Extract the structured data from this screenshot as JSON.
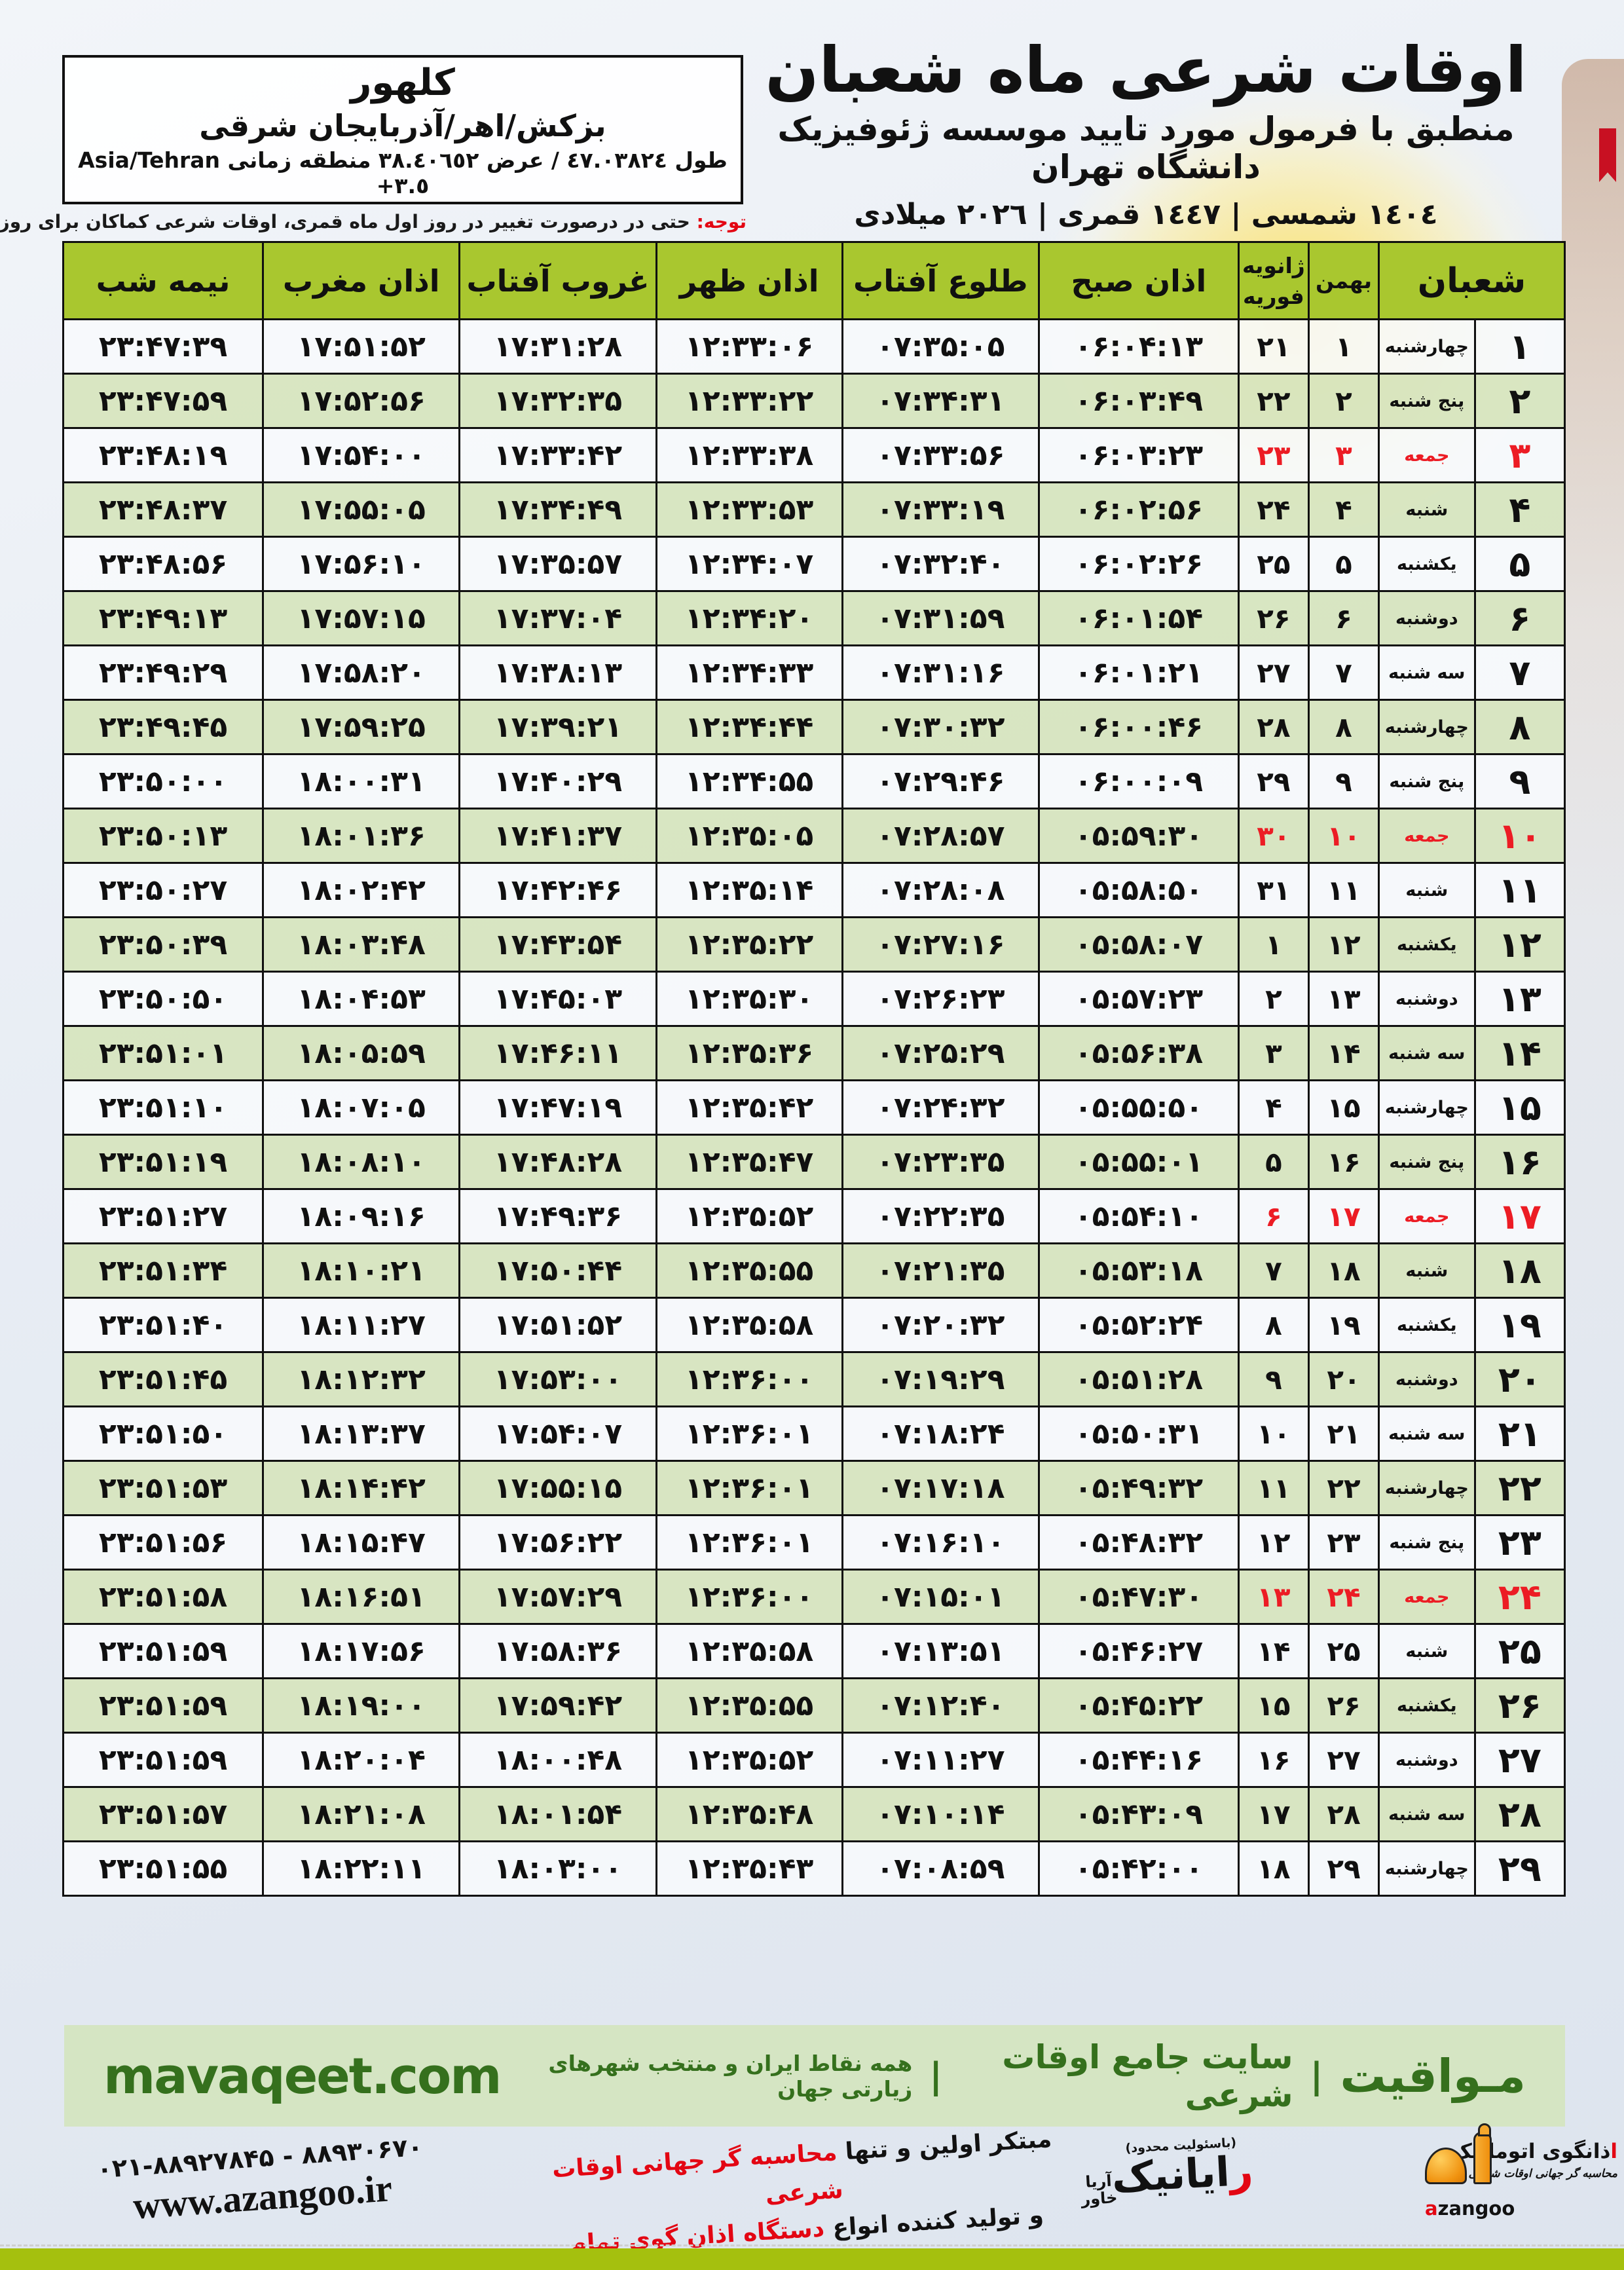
{
  "header": {
    "title": "اوقات شرعی ماه شعبان",
    "subtitle": "منطبق با فرمول مورد تایید موسسه ژئوفیزیک دانشگاه تهران",
    "years": "١٤٠٤ شمسی | ١٤٤٧ قمری | ٢٠٢٦ میلادی"
  },
  "location": {
    "name": "کلهور",
    "region": "بزکش/اهر/آذربایجان شرقی",
    "coords_fa": "طول ٤٧.٠٣٨٢٤ / عرض ٣٨.٤٠٦٥٢ منطقه زمانی",
    "timezone": "Asia/Tehran +٣.٥"
  },
  "notice": {
    "label": "توجه:",
    "text": " حتی در درصورت تغییر در روز اول ماه قمری، اوقات شرعی کماکان برای روزهای شمسی و میلادی معتبر است."
  },
  "colors": {
    "header_green": "#a9c72f",
    "row_green": "#d7e5bf",
    "friday_red": "#ec1c24",
    "mavaqeet_band": "#d5e5c3",
    "mavaqeet_text": "#35701d",
    "bottom_band": "#a5c00e"
  },
  "table": {
    "headers": {
      "shaban": "شعبان",
      "bahman": "بهمن",
      "jan": "ژانویه",
      "feb": "فوریه",
      "sobh": "اذان صبح",
      "tolu": "طلوع آفتاب",
      "zohr": "اذان ظهر",
      "ghorub": "غروب آفتاب",
      "maghreb": "اذان مغرب",
      "nimeshab": "نیمه شب"
    },
    "rows": [
      {
        "day": "۱",
        "weekday": "چهارشنبه",
        "bahman": "۱",
        "greg": "۲۱",
        "sobh": "۰۶:۰۴:۱۳",
        "tolu": "۰۷:۳۵:۰۵",
        "zohr": "۱۲:۳۳:۰۶",
        "ghorub": "۱۷:۳۱:۲۸",
        "maghreb": "۱۷:۵۱:۵۲",
        "nimeshab": "۲۳:۴۷:۳۹",
        "friday": false
      },
      {
        "day": "۲",
        "weekday": "پنج شنبه",
        "bahman": "۲",
        "greg": "۲۲",
        "sobh": "۰۶:۰۳:۴۹",
        "tolu": "۰۷:۳۴:۳۱",
        "zohr": "۱۲:۳۳:۲۲",
        "ghorub": "۱۷:۳۲:۳۵",
        "maghreb": "۱۷:۵۲:۵۶",
        "nimeshab": "۲۳:۴۷:۵۹",
        "friday": false
      },
      {
        "day": "۳",
        "weekday": "جمعه",
        "bahman": "۳",
        "greg": "۲۳",
        "sobh": "۰۶:۰۳:۲۳",
        "tolu": "۰۷:۳۳:۵۶",
        "zohr": "۱۲:۳۳:۳۸",
        "ghorub": "۱۷:۳۳:۴۲",
        "maghreb": "۱۷:۵۴:۰۰",
        "nimeshab": "۲۳:۴۸:۱۹",
        "friday": true
      },
      {
        "day": "۴",
        "weekday": "شنبه",
        "bahman": "۴",
        "greg": "۲۴",
        "sobh": "۰۶:۰۲:۵۶",
        "tolu": "۰۷:۳۳:۱۹",
        "zohr": "۱۲:۳۳:۵۳",
        "ghorub": "۱۷:۳۴:۴۹",
        "maghreb": "۱۷:۵۵:۰۵",
        "nimeshab": "۲۳:۴۸:۳۷",
        "friday": false
      },
      {
        "day": "۵",
        "weekday": "یکشنبه",
        "bahman": "۵",
        "greg": "۲۵",
        "sobh": "۰۶:۰۲:۲۶",
        "tolu": "۰۷:۳۲:۴۰",
        "zohr": "۱۲:۳۴:۰۷",
        "ghorub": "۱۷:۳۵:۵۷",
        "maghreb": "۱۷:۵۶:۱۰",
        "nimeshab": "۲۳:۴۸:۵۶",
        "friday": false
      },
      {
        "day": "۶",
        "weekday": "دوشنبه",
        "bahman": "۶",
        "greg": "۲۶",
        "sobh": "۰۶:۰۱:۵۴",
        "tolu": "۰۷:۳۱:۵۹",
        "zohr": "۱۲:۳۴:۲۰",
        "ghorub": "۱۷:۳۷:۰۴",
        "maghreb": "۱۷:۵۷:۱۵",
        "nimeshab": "۲۳:۴۹:۱۳",
        "friday": false
      },
      {
        "day": "۷",
        "weekday": "سه شنبه",
        "bahman": "۷",
        "greg": "۲۷",
        "sobh": "۰۶:۰۱:۲۱",
        "tolu": "۰۷:۳۱:۱۶",
        "zohr": "۱۲:۳۴:۳۳",
        "ghorub": "۱۷:۳۸:۱۳",
        "maghreb": "۱۷:۵۸:۲۰",
        "nimeshab": "۲۳:۴۹:۲۹",
        "friday": false
      },
      {
        "day": "۸",
        "weekday": "چهارشنبه",
        "bahman": "۸",
        "greg": "۲۸",
        "sobh": "۰۶:۰۰:۴۶",
        "tolu": "۰۷:۳۰:۳۲",
        "zohr": "۱۲:۳۴:۴۴",
        "ghorub": "۱۷:۳۹:۲۱",
        "maghreb": "۱۷:۵۹:۲۵",
        "nimeshab": "۲۳:۴۹:۴۵",
        "friday": false
      },
      {
        "day": "۹",
        "weekday": "پنج شنبه",
        "bahman": "۹",
        "greg": "۲۹",
        "sobh": "۰۶:۰۰:۰۹",
        "tolu": "۰۷:۲۹:۴۶",
        "zohr": "۱۲:۳۴:۵۵",
        "ghorub": "۱۷:۴۰:۲۹",
        "maghreb": "۱۸:۰۰:۳۱",
        "nimeshab": "۲۳:۵۰:۰۰",
        "friday": false
      },
      {
        "day": "۱۰",
        "weekday": "جمعه",
        "bahman": "۱۰",
        "greg": "۳۰",
        "sobh": "۰۵:۵۹:۳۰",
        "tolu": "۰۷:۲۸:۵۷",
        "zohr": "۱۲:۳۵:۰۵",
        "ghorub": "۱۷:۴۱:۳۷",
        "maghreb": "۱۸:۰۱:۳۶",
        "nimeshab": "۲۳:۵۰:۱۳",
        "friday": true
      },
      {
        "day": "۱۱",
        "weekday": "شنبه",
        "bahman": "۱۱",
        "greg": "۳۱",
        "sobh": "۰۵:۵۸:۵۰",
        "tolu": "۰۷:۲۸:۰۸",
        "zohr": "۱۲:۳۵:۱۴",
        "ghorub": "۱۷:۴۲:۴۶",
        "maghreb": "۱۸:۰۲:۴۲",
        "nimeshab": "۲۳:۵۰:۲۷",
        "friday": false
      },
      {
        "day": "۱۲",
        "weekday": "یکشنبه",
        "bahman": "۱۲",
        "greg": "۱",
        "sobh": "۰۵:۵۸:۰۷",
        "tolu": "۰۷:۲۷:۱۶",
        "zohr": "۱۲:۳۵:۲۲",
        "ghorub": "۱۷:۴۳:۵۴",
        "maghreb": "۱۸:۰۳:۴۸",
        "nimeshab": "۲۳:۵۰:۳۹",
        "friday": false
      },
      {
        "day": "۱۳",
        "weekday": "دوشنبه",
        "bahman": "۱۳",
        "greg": "۲",
        "sobh": "۰۵:۵۷:۲۳",
        "tolu": "۰۷:۲۶:۲۳",
        "zohr": "۱۲:۳۵:۳۰",
        "ghorub": "۱۷:۴۵:۰۳",
        "maghreb": "۱۸:۰۴:۵۳",
        "nimeshab": "۲۳:۵۰:۵۰",
        "friday": false
      },
      {
        "day": "۱۴",
        "weekday": "سه شنبه",
        "bahman": "۱۴",
        "greg": "۳",
        "sobh": "۰۵:۵۶:۳۸",
        "tolu": "۰۷:۲۵:۲۹",
        "zohr": "۱۲:۳۵:۳۶",
        "ghorub": "۱۷:۴۶:۱۱",
        "maghreb": "۱۸:۰۵:۵۹",
        "nimeshab": "۲۳:۵۱:۰۱",
        "friday": false
      },
      {
        "day": "۱۵",
        "weekday": "چهارشنبه",
        "bahman": "۱۵",
        "greg": "۴",
        "sobh": "۰۵:۵۵:۵۰",
        "tolu": "۰۷:۲۴:۳۲",
        "zohr": "۱۲:۳۵:۴۲",
        "ghorub": "۱۷:۴۷:۱۹",
        "maghreb": "۱۸:۰۷:۰۵",
        "nimeshab": "۲۳:۵۱:۱۰",
        "friday": false
      },
      {
        "day": "۱۶",
        "weekday": "پنج شنبه",
        "bahman": "۱۶",
        "greg": "۵",
        "sobh": "۰۵:۵۵:۰۱",
        "tolu": "۰۷:۲۳:۳۵",
        "zohr": "۱۲:۳۵:۴۷",
        "ghorub": "۱۷:۴۸:۲۸",
        "maghreb": "۱۸:۰۸:۱۰",
        "nimeshab": "۲۳:۵۱:۱۹",
        "friday": false
      },
      {
        "day": "۱۷",
        "weekday": "جمعه",
        "bahman": "۱۷",
        "greg": "۶",
        "sobh": "۰۵:۵۴:۱۰",
        "tolu": "۰۷:۲۲:۳۵",
        "zohr": "۱۲:۳۵:۵۲",
        "ghorub": "۱۷:۴۹:۳۶",
        "maghreb": "۱۸:۰۹:۱۶",
        "nimeshab": "۲۳:۵۱:۲۷",
        "friday": true
      },
      {
        "day": "۱۸",
        "weekday": "شنبه",
        "bahman": "۱۸",
        "greg": "۷",
        "sobh": "۰۵:۵۳:۱۸",
        "tolu": "۰۷:۲۱:۳۵",
        "zohr": "۱۲:۳۵:۵۵",
        "ghorub": "۱۷:۵۰:۴۴",
        "maghreb": "۱۸:۱۰:۲۱",
        "nimeshab": "۲۳:۵۱:۳۴",
        "friday": false
      },
      {
        "day": "۱۹",
        "weekday": "یکشنبه",
        "bahman": "۱۹",
        "greg": "۸",
        "sobh": "۰۵:۵۲:۲۴",
        "tolu": "۰۷:۲۰:۳۲",
        "zohr": "۱۲:۳۵:۵۸",
        "ghorub": "۱۷:۵۱:۵۲",
        "maghreb": "۱۸:۱۱:۲۷",
        "nimeshab": "۲۳:۵۱:۴۰",
        "friday": false
      },
      {
        "day": "۲۰",
        "weekday": "دوشنبه",
        "bahman": "۲۰",
        "greg": "۹",
        "sobh": "۰۵:۵۱:۲۸",
        "tolu": "۰۷:۱۹:۲۹",
        "zohr": "۱۲:۳۶:۰۰",
        "ghorub": "۱۷:۵۳:۰۰",
        "maghreb": "۱۸:۱۲:۳۲",
        "nimeshab": "۲۳:۵۱:۴۵",
        "friday": false
      },
      {
        "day": "۲۱",
        "weekday": "سه شنبه",
        "bahman": "۲۱",
        "greg": "۱۰",
        "sobh": "۰۵:۵۰:۳۱",
        "tolu": "۰۷:۱۸:۲۴",
        "zohr": "۱۲:۳۶:۰۱",
        "ghorub": "۱۷:۵۴:۰۷",
        "maghreb": "۱۸:۱۳:۳۷",
        "nimeshab": "۲۳:۵۱:۵۰",
        "friday": false
      },
      {
        "day": "۲۲",
        "weekday": "چهارشنبه",
        "bahman": "۲۲",
        "greg": "۱۱",
        "sobh": "۰۵:۴۹:۳۲",
        "tolu": "۰۷:۱۷:۱۸",
        "zohr": "۱۲:۳۶:۰۱",
        "ghorub": "۱۷:۵۵:۱۵",
        "maghreb": "۱۸:۱۴:۴۲",
        "nimeshab": "۲۳:۵۱:۵۳",
        "friday": false
      },
      {
        "day": "۲۳",
        "weekday": "پنج شنبه",
        "bahman": "۲۳",
        "greg": "۱۲",
        "sobh": "۰۵:۴۸:۳۲",
        "tolu": "۰۷:۱۶:۱۰",
        "zohr": "۱۲:۳۶:۰۱",
        "ghorub": "۱۷:۵۶:۲۲",
        "maghreb": "۱۸:۱۵:۴۷",
        "nimeshab": "۲۳:۵۱:۵۶",
        "friday": false
      },
      {
        "day": "۲۴",
        "weekday": "جمعه",
        "bahman": "۲۴",
        "greg": "۱۳",
        "sobh": "۰۵:۴۷:۳۰",
        "tolu": "۰۷:۱۵:۰۱",
        "zohr": "۱۲:۳۶:۰۰",
        "ghorub": "۱۷:۵۷:۲۹",
        "maghreb": "۱۸:۱۶:۵۱",
        "nimeshab": "۲۳:۵۱:۵۸",
        "friday": true
      },
      {
        "day": "۲۵",
        "weekday": "شنبه",
        "bahman": "۲۵",
        "greg": "۱۴",
        "sobh": "۰۵:۴۶:۲۷",
        "tolu": "۰۷:۱۳:۵۱",
        "zohr": "۱۲:۳۵:۵۸",
        "ghorub": "۱۷:۵۸:۳۶",
        "maghreb": "۱۸:۱۷:۵۶",
        "nimeshab": "۲۳:۵۱:۵۹",
        "friday": false
      },
      {
        "day": "۲۶",
        "weekday": "یکشنبه",
        "bahman": "۲۶",
        "greg": "۱۵",
        "sobh": "۰۵:۴۵:۲۲",
        "tolu": "۰۷:۱۲:۴۰",
        "zohr": "۱۲:۳۵:۵۵",
        "ghorub": "۱۷:۵۹:۴۲",
        "maghreb": "۱۸:۱۹:۰۰",
        "nimeshab": "۲۳:۵۱:۵۹",
        "friday": false
      },
      {
        "day": "۲۷",
        "weekday": "دوشنبه",
        "bahman": "۲۷",
        "greg": "۱۶",
        "sobh": "۰۵:۴۴:۱۶",
        "tolu": "۰۷:۱۱:۲۷",
        "zohr": "۱۲:۳۵:۵۲",
        "ghorub": "۱۸:۰۰:۴۸",
        "maghreb": "۱۸:۲۰:۰۴",
        "nimeshab": "۲۳:۵۱:۵۹",
        "friday": false
      },
      {
        "day": "۲۸",
        "weekday": "سه شنبه",
        "bahman": "۲۸",
        "greg": "۱۷",
        "sobh": "۰۵:۴۳:۰۹",
        "tolu": "۰۷:۱۰:۱۴",
        "zohr": "۱۲:۳۵:۴۸",
        "ghorub": "۱۸:۰۱:۵۴",
        "maghreb": "۱۸:۲۱:۰۸",
        "nimeshab": "۲۳:۵۱:۵۷",
        "friday": false
      },
      {
        "day": "۲۹",
        "weekday": "چهارشنبه",
        "bahman": "۲۹",
        "greg": "۱۸",
        "sobh": "۰۵:۴۲:۰۰",
        "tolu": "۰۷:۰۸:۵۹",
        "zohr": "۱۲:۳۵:۴۳",
        "ghorub": "۱۸:۰۳:۰۰",
        "maghreb": "۱۸:۲۲:۱۱",
        "nimeshab": "۲۳:۵۱:۵۵",
        "friday": false
      }
    ]
  },
  "footer": {
    "mavaqeet": {
      "brand": "مـواقیت",
      "separator": "|",
      "site_desc": "سایت جامع اوقات شرعی",
      "scope": "همه نقاط ایران و منتخب شهرهای زیارتی جهان",
      "domain": "mavaqeet.com"
    },
    "contact": {
      "phones": "۰۲۱-۸۸۹۲۷۸۴۵ - ۸۸۹۳۰۶۷۰",
      "website": "www.azangoo.ir"
    },
    "slogan": {
      "line1_black": "مبتکر اولین و تنها ",
      "line1_red": "محاسبه گر جهانی اوقات شرعی",
      "line2_black": "و تولید کننده انواع ",
      "line2_red": "دستگاه اذان گوی تمام خودکار ماهواره ای"
    },
    "rayanik": {
      "tiny": "(باسئولیت محدود)",
      "name_red": "ر",
      "name_black": "ایانیک",
      "sub_top": "آریا",
      "sub_bottom": "خاور"
    },
    "azangoo": {
      "fa_name_red": "ا",
      "fa_name_black": "ذانگوی اتوماتیک",
      "fa_sub": "محاسبه گر جهانی اوقات شرعی",
      "word_red": "a",
      "word_black": "zangoo"
    }
  }
}
